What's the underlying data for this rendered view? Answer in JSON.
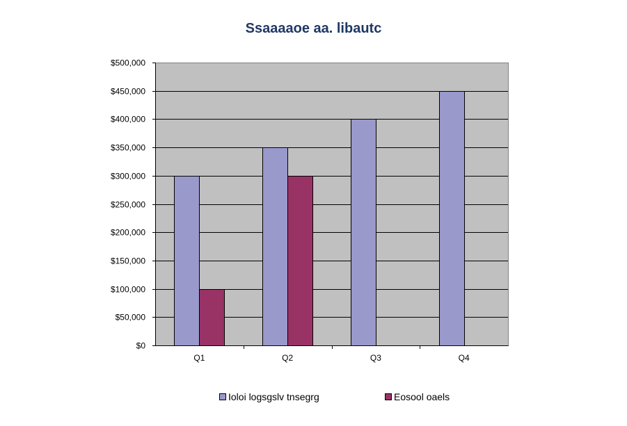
{
  "chart_data": {
    "type": "bar",
    "title": "Ssaaaaoe aa. libautc",
    "categories": [
      "Q1",
      "Q2",
      "Q3",
      "Q4"
    ],
    "series": [
      {
        "name": "Ioloi logsgslv tnsegrg",
        "values": [
          300000,
          350000,
          400000,
          450000
        ],
        "color": "#9999cc"
      },
      {
        "name": "Eosool oaels",
        "values": [
          100000,
          null,
          null,
          null
        ],
        "color": "#993366"
      }
    ],
    "series_fix": [
      100000,
      300000,
      null,
      null
    ],
    "ylim": [
      0,
      500000
    ],
    "y_ticks": [
      "$0",
      "$50,000",
      "$100,000",
      "$150,000",
      "$200,000",
      "$250,000",
      "$300,000",
      "$350,000",
      "$400,000",
      "$450,000",
      "$500,000"
    ],
    "grid": true,
    "plot_background": "#c0c0c0",
    "legend_position": "bottom"
  }
}
